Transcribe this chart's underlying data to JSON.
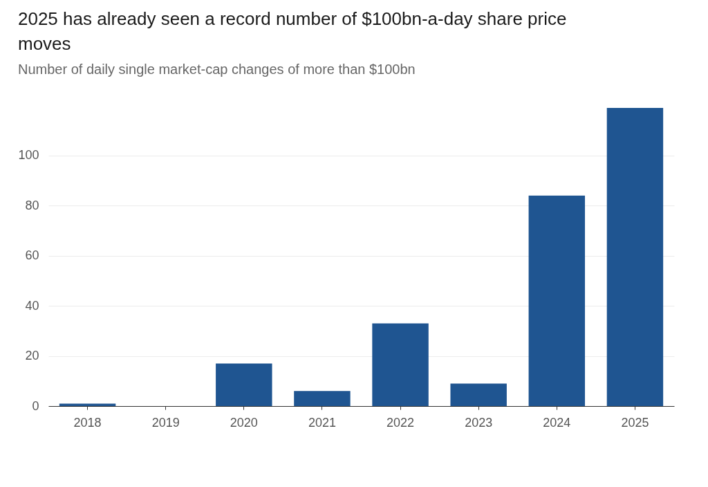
{
  "chart_data": {
    "type": "bar",
    "title": "2025 has already seen a record number of $100bn-a-day share price moves",
    "subtitle": "Number of daily single market-cap changes of more than $100bn",
    "categories": [
      "2018",
      "2019",
      "2020",
      "2021",
      "2022",
      "2023",
      "2024",
      "2025"
    ],
    "values": [
      1,
      0,
      17,
      6,
      33,
      9,
      84,
      119
    ],
    "color": "#1f5591",
    "ylim": [
      0,
      119
    ],
    "yticks": [
      0,
      20,
      40,
      60,
      80,
      100
    ],
    "grid": "y"
  }
}
